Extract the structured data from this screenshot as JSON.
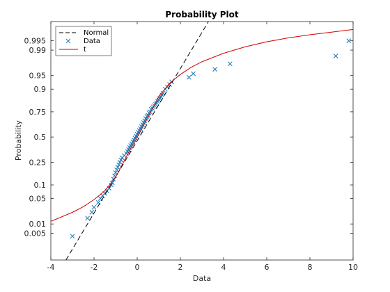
{
  "chart_data": {
    "type": "scatter",
    "title": "Probability Plot",
    "xlabel": "Data",
    "ylabel": "Probability",
    "xlim": [
      -4,
      10
    ],
    "xticks": [
      -4,
      -2,
      0,
      2,
      4,
      6,
      8,
      10
    ],
    "yticks": [
      0.005,
      0.01,
      0.05,
      0.1,
      0.25,
      0.5,
      0.75,
      0.9,
      0.95,
      0.99,
      0.995
    ],
    "ytick_labels": [
      "0.005",
      "0.01",
      "0.05",
      "0.1",
      "0.25",
      "0.5",
      "0.75",
      "0.9",
      "0.95",
      "0.99",
      "0.995"
    ],
    "yscale": "normal-probability",
    "ylim": [
      0.0005,
      0.999
    ],
    "grid": false,
    "legend_placement": "top-left",
    "legend": [
      {
        "label": "Normal",
        "style": "dashed-line",
        "color": "#000000"
      },
      {
        "label": "Data",
        "style": "x-marker",
        "color": "#1f77b4"
      },
      {
        "label": "t",
        "style": "solid-line",
        "color": "#d00000"
      }
    ],
    "series": [
      {
        "name": "Data",
        "kind": "scatter",
        "marker": "x",
        "color": "#1f77b4",
        "x": [
          -3.0,
          -2.3,
          -2.1,
          -2.0,
          -1.8,
          -1.7,
          -1.6,
          -1.5,
          -1.4,
          -1.3,
          -1.2,
          -1.15,
          -1.1,
          -1.05,
          -1.0,
          -0.95,
          -0.9,
          -0.85,
          -0.8,
          -0.75,
          -0.7,
          -0.6,
          -0.5,
          -0.45,
          -0.4,
          -0.35,
          -0.3,
          -0.25,
          -0.2,
          -0.15,
          -0.1,
          -0.05,
          0.0,
          0.05,
          0.1,
          0.15,
          0.2,
          0.25,
          0.3,
          0.35,
          0.4,
          0.45,
          0.5,
          0.55,
          0.6,
          0.65,
          0.7,
          0.75,
          0.8,
          0.85,
          0.9,
          0.95,
          1.0,
          1.05,
          1.1,
          1.15,
          1.2,
          1.3,
          1.4,
          1.5,
          1.6,
          2.4,
          2.6,
          3.6,
          4.3,
          9.2,
          9.8
        ],
        "y": [
          0.004,
          0.015,
          0.022,
          0.03,
          0.04,
          0.05,
          0.058,
          0.066,
          0.075,
          0.085,
          0.1,
          0.11,
          0.13,
          0.15,
          0.17,
          0.19,
          0.21,
          0.23,
          0.25,
          0.27,
          0.29,
          0.31,
          0.33,
          0.35,
          0.37,
          0.39,
          0.41,
          0.43,
          0.45,
          0.47,
          0.49,
          0.51,
          0.53,
          0.55,
          0.57,
          0.59,
          0.61,
          0.63,
          0.65,
          0.67,
          0.69,
          0.71,
          0.72,
          0.74,
          0.75,
          0.77,
          0.78,
          0.79,
          0.8,
          0.81,
          0.82,
          0.83,
          0.84,
          0.85,
          0.86,
          0.87,
          0.88,
          0.9,
          0.91,
          0.92,
          0.93,
          0.945,
          0.955,
          0.965,
          0.975,
          0.985,
          0.995
        ]
      },
      {
        "name": "Normal",
        "kind": "line",
        "style": "dashed",
        "color": "#000000",
        "x": [
          -3.3,
          3.3
        ],
        "y": [
          0.0005,
          0.999
        ]
      },
      {
        "name": "t",
        "kind": "line",
        "style": "solid",
        "color": "#d00000",
        "x": [
          -4.0,
          -3.0,
          -2.5,
          -2.0,
          -1.5,
          -1.0,
          -0.5,
          0.0,
          0.5,
          1.0,
          1.5,
          2.0,
          2.5,
          3.0,
          4.0,
          5.0,
          6.0,
          7.0,
          8.0,
          9.0,
          10.0
        ],
        "y": [
          0.012,
          0.022,
          0.031,
          0.047,
          0.075,
          0.14,
          0.3,
          0.5,
          0.7,
          0.86,
          0.925,
          0.953,
          0.969,
          0.978,
          0.9875,
          0.9921,
          0.9946,
          0.996,
          0.9969,
          0.9975,
          0.998
        ]
      }
    ]
  }
}
